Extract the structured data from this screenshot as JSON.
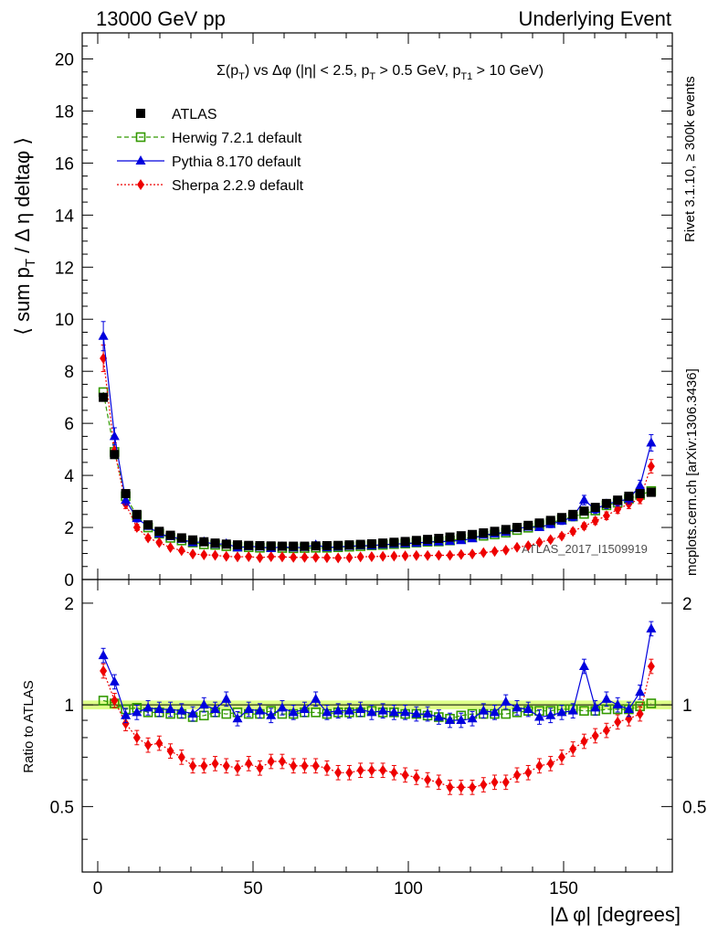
{
  "header": {
    "left": "13000 GeV pp",
    "right": "Underlying Event"
  },
  "side_labels": {
    "rivet": "Rivet 3.1.10, ≥ 300k events",
    "mcplots": "mcplots.cern.ch [arXiv:1306.3436]"
  },
  "watermark": "ATLAS_2017_I1509919",
  "chart_data": [
    {
      "type": "scatter",
      "title_parts": {
        "main": "Σ(p",
        "sub1": "T",
        "mid": ") vs Δφ (|η| < 2.5, p",
        "sub2": "T",
        "mid2": " > 0.5 GeV, p",
        "sub3": "T1",
        "end": " > 10 GeV)"
      },
      "ylabel_parts": {
        "pre": "⟨ sum p",
        "sub": "T",
        "post": " / Δ η deltaφ ⟩"
      },
      "xlim": [
        -5,
        185
      ],
      "ylim": [
        0,
        21
      ],
      "yticks": [
        0,
        2,
        4,
        6,
        8,
        10,
        12,
        14,
        16,
        18,
        20
      ],
      "legend_position": "top-left",
      "legend": [
        {
          "name": "ATLAS",
          "color": "#000000",
          "marker": "square-filled",
          "line": "none"
        },
        {
          "name": "Herwig 7.2.1 default",
          "color": "#339900",
          "marker": "square-open",
          "line": "dashed"
        },
        {
          "name": "Pythia 8.170 default",
          "color": "#0000dd",
          "marker": "triangle",
          "line": "solid"
        },
        {
          "name": "Sherpa 2.2.9 default",
          "color": "#ee0000",
          "marker": "diamond",
          "line": "dotted"
        }
      ],
      "x": [
        1.8,
        5.4,
        9.0,
        12.6,
        16.2,
        19.8,
        23.4,
        27.0,
        30.6,
        34.2,
        37.8,
        41.4,
        45.0,
        48.6,
        52.2,
        55.8,
        59.4,
        63.0,
        66.6,
        70.2,
        73.8,
        77.4,
        81.0,
        84.6,
        88.2,
        91.8,
        95.4,
        99.0,
        102.6,
        106.2,
        109.8,
        113.4,
        117.0,
        120.6,
        124.2,
        127.8,
        131.4,
        135.0,
        138.6,
        142.2,
        145.8,
        149.4,
        153.0,
        156.6,
        160.2,
        163.8,
        167.4,
        171.0,
        174.6,
        178.2
      ],
      "series": [
        {
          "name": "ATLAS",
          "values": [
            7.0,
            4.8,
            3.3,
            2.5,
            2.1,
            1.85,
            1.7,
            1.6,
            1.52,
            1.45,
            1.4,
            1.36,
            1.33,
            1.31,
            1.3,
            1.29,
            1.28,
            1.28,
            1.28,
            1.29,
            1.3,
            1.31,
            1.33,
            1.35,
            1.37,
            1.4,
            1.43,
            1.46,
            1.5,
            1.54,
            1.58,
            1.63,
            1.68,
            1.73,
            1.79,
            1.85,
            1.92,
            2.0,
            2.08,
            2.17,
            2.27,
            2.38,
            2.5,
            2.63,
            2.77,
            2.92,
            3.05,
            3.2,
            3.3,
            3.35
          ]
        },
        {
          "name": "Herwig 7.2.1 default",
          "values": [
            7.2,
            4.9,
            3.2,
            2.45,
            2.0,
            1.76,
            1.6,
            1.5,
            1.42,
            1.35,
            1.33,
            1.28,
            1.26,
            1.24,
            1.22,
            1.24,
            1.21,
            1.2,
            1.21,
            1.22,
            1.22,
            1.24,
            1.26,
            1.28,
            1.31,
            1.33,
            1.36,
            1.38,
            1.42,
            1.45,
            1.46,
            1.5,
            1.56,
            1.63,
            1.68,
            1.73,
            1.8,
            1.9,
            1.99,
            2.09,
            2.18,
            2.3,
            2.42,
            2.52,
            2.65,
            2.85,
            2.95,
            3.1,
            3.25,
            3.4
          ]
        },
        {
          "name": "Pythia 8.170 default",
          "values": [
            9.35,
            5.5,
            3.05,
            2.35,
            2.05,
            1.75,
            1.65,
            1.55,
            1.42,
            1.45,
            1.35,
            1.38,
            1.22,
            1.27,
            1.25,
            1.2,
            1.26,
            1.22,
            1.24,
            1.33,
            1.23,
            1.25,
            1.28,
            1.3,
            1.3,
            1.34,
            1.36,
            1.38,
            1.4,
            1.44,
            1.45,
            1.47,
            1.5,
            1.57,
            1.71,
            1.76,
            1.82,
            1.96,
            2.02,
            2.0,
            2.12,
            2.25,
            2.4,
            3.05,
            2.7,
            2.9,
            3.0,
            3.1,
            3.6,
            5.25
          ]
        },
        {
          "name": "Sherpa 2.2.9 default",
          "values": [
            8.5,
            4.95,
            2.9,
            2.0,
            1.6,
            1.42,
            1.23,
            1.11,
            0.98,
            0.95,
            0.93,
            0.89,
            0.87,
            0.88,
            0.84,
            0.88,
            0.87,
            0.85,
            0.85,
            0.85,
            0.84,
            0.83,
            0.84,
            0.87,
            0.88,
            0.89,
            0.9,
            0.91,
            0.92,
            0.92,
            0.93,
            0.93,
            0.96,
            0.98,
            1.03,
            1.08,
            1.13,
            1.24,
            1.3,
            1.43,
            1.53,
            1.67,
            1.85,
            2.05,
            2.25,
            2.45,
            2.7,
            2.9,
            3.1,
            4.35
          ]
        }
      ]
    },
    {
      "type": "scatter",
      "xlabel": "|Δ φ| [degrees]",
      "ylabel": "Ratio to ATLAS",
      "xlim": [
        -5,
        185
      ],
      "ylim": [
        0.32,
        2.35
      ],
      "xticks": [
        0,
        50,
        100,
        150
      ],
      "yticks": [
        0.5,
        1,
        2
      ],
      "band_color": "#ddff88",
      "x": [
        1.8,
        5.4,
        9.0,
        12.6,
        16.2,
        19.8,
        23.4,
        27.0,
        30.6,
        34.2,
        37.8,
        41.4,
        45.0,
        48.6,
        52.2,
        55.8,
        59.4,
        63.0,
        66.6,
        70.2,
        73.8,
        77.4,
        81.0,
        84.6,
        88.2,
        91.8,
        95.4,
        99.0,
        102.6,
        106.2,
        109.8,
        113.4,
        117.0,
        120.6,
        124.2,
        127.8,
        131.4,
        135.0,
        138.6,
        142.2,
        145.8,
        149.4,
        153.0,
        156.6,
        160.2,
        163.8,
        167.4,
        171.0,
        174.6,
        178.2
      ],
      "series": [
        {
          "name": "Herwig 7.2.1 default",
          "values": [
            1.03,
            1.01,
            0.97,
            0.98,
            0.95,
            0.95,
            0.94,
            0.94,
            0.92,
            0.93,
            0.95,
            0.94,
            0.95,
            0.94,
            0.94,
            0.96,
            0.94,
            0.94,
            0.95,
            0.95,
            0.94,
            0.95,
            0.95,
            0.95,
            0.96,
            0.95,
            0.95,
            0.94,
            0.94,
            0.93,
            0.92,
            0.91,
            0.93,
            0.94,
            0.94,
            0.94,
            0.94,
            0.95,
            0.96,
            0.96,
            0.96,
            0.97,
            0.97,
            0.96,
            0.96,
            0.97,
            0.97,
            0.97,
            0.99,
            1.01
          ]
        },
        {
          "name": "Pythia 8.170 default",
          "values": [
            1.4,
            1.17,
            0.93,
            0.95,
            0.98,
            0.97,
            0.97,
            0.96,
            0.94,
            1.0,
            0.97,
            1.04,
            0.91,
            0.97,
            0.96,
            0.93,
            0.98,
            0.95,
            0.97,
            1.04,
            0.95,
            0.96,
            0.96,
            0.97,
            0.95,
            0.96,
            0.95,
            0.95,
            0.94,
            0.94,
            0.92,
            0.9,
            0.9,
            0.91,
            0.96,
            0.95,
            1.02,
            0.98,
            0.97,
            0.92,
            0.93,
            0.95,
            0.96,
            1.3,
            0.98,
            1.04,
            1.0,
            0.97,
            1.09,
            1.68
          ]
        },
        {
          "name": "Sherpa 2.2.9 default",
          "values": [
            1.26,
            1.03,
            0.88,
            0.8,
            0.76,
            0.77,
            0.73,
            0.7,
            0.66,
            0.66,
            0.67,
            0.66,
            0.65,
            0.67,
            0.65,
            0.68,
            0.68,
            0.66,
            0.66,
            0.66,
            0.65,
            0.63,
            0.63,
            0.64,
            0.64,
            0.64,
            0.63,
            0.62,
            0.61,
            0.6,
            0.59,
            0.57,
            0.57,
            0.57,
            0.58,
            0.59,
            0.59,
            0.62,
            0.63,
            0.66,
            0.67,
            0.7,
            0.74,
            0.78,
            0.81,
            0.84,
            0.89,
            0.91,
            0.94,
            1.3
          ]
        }
      ]
    }
  ]
}
